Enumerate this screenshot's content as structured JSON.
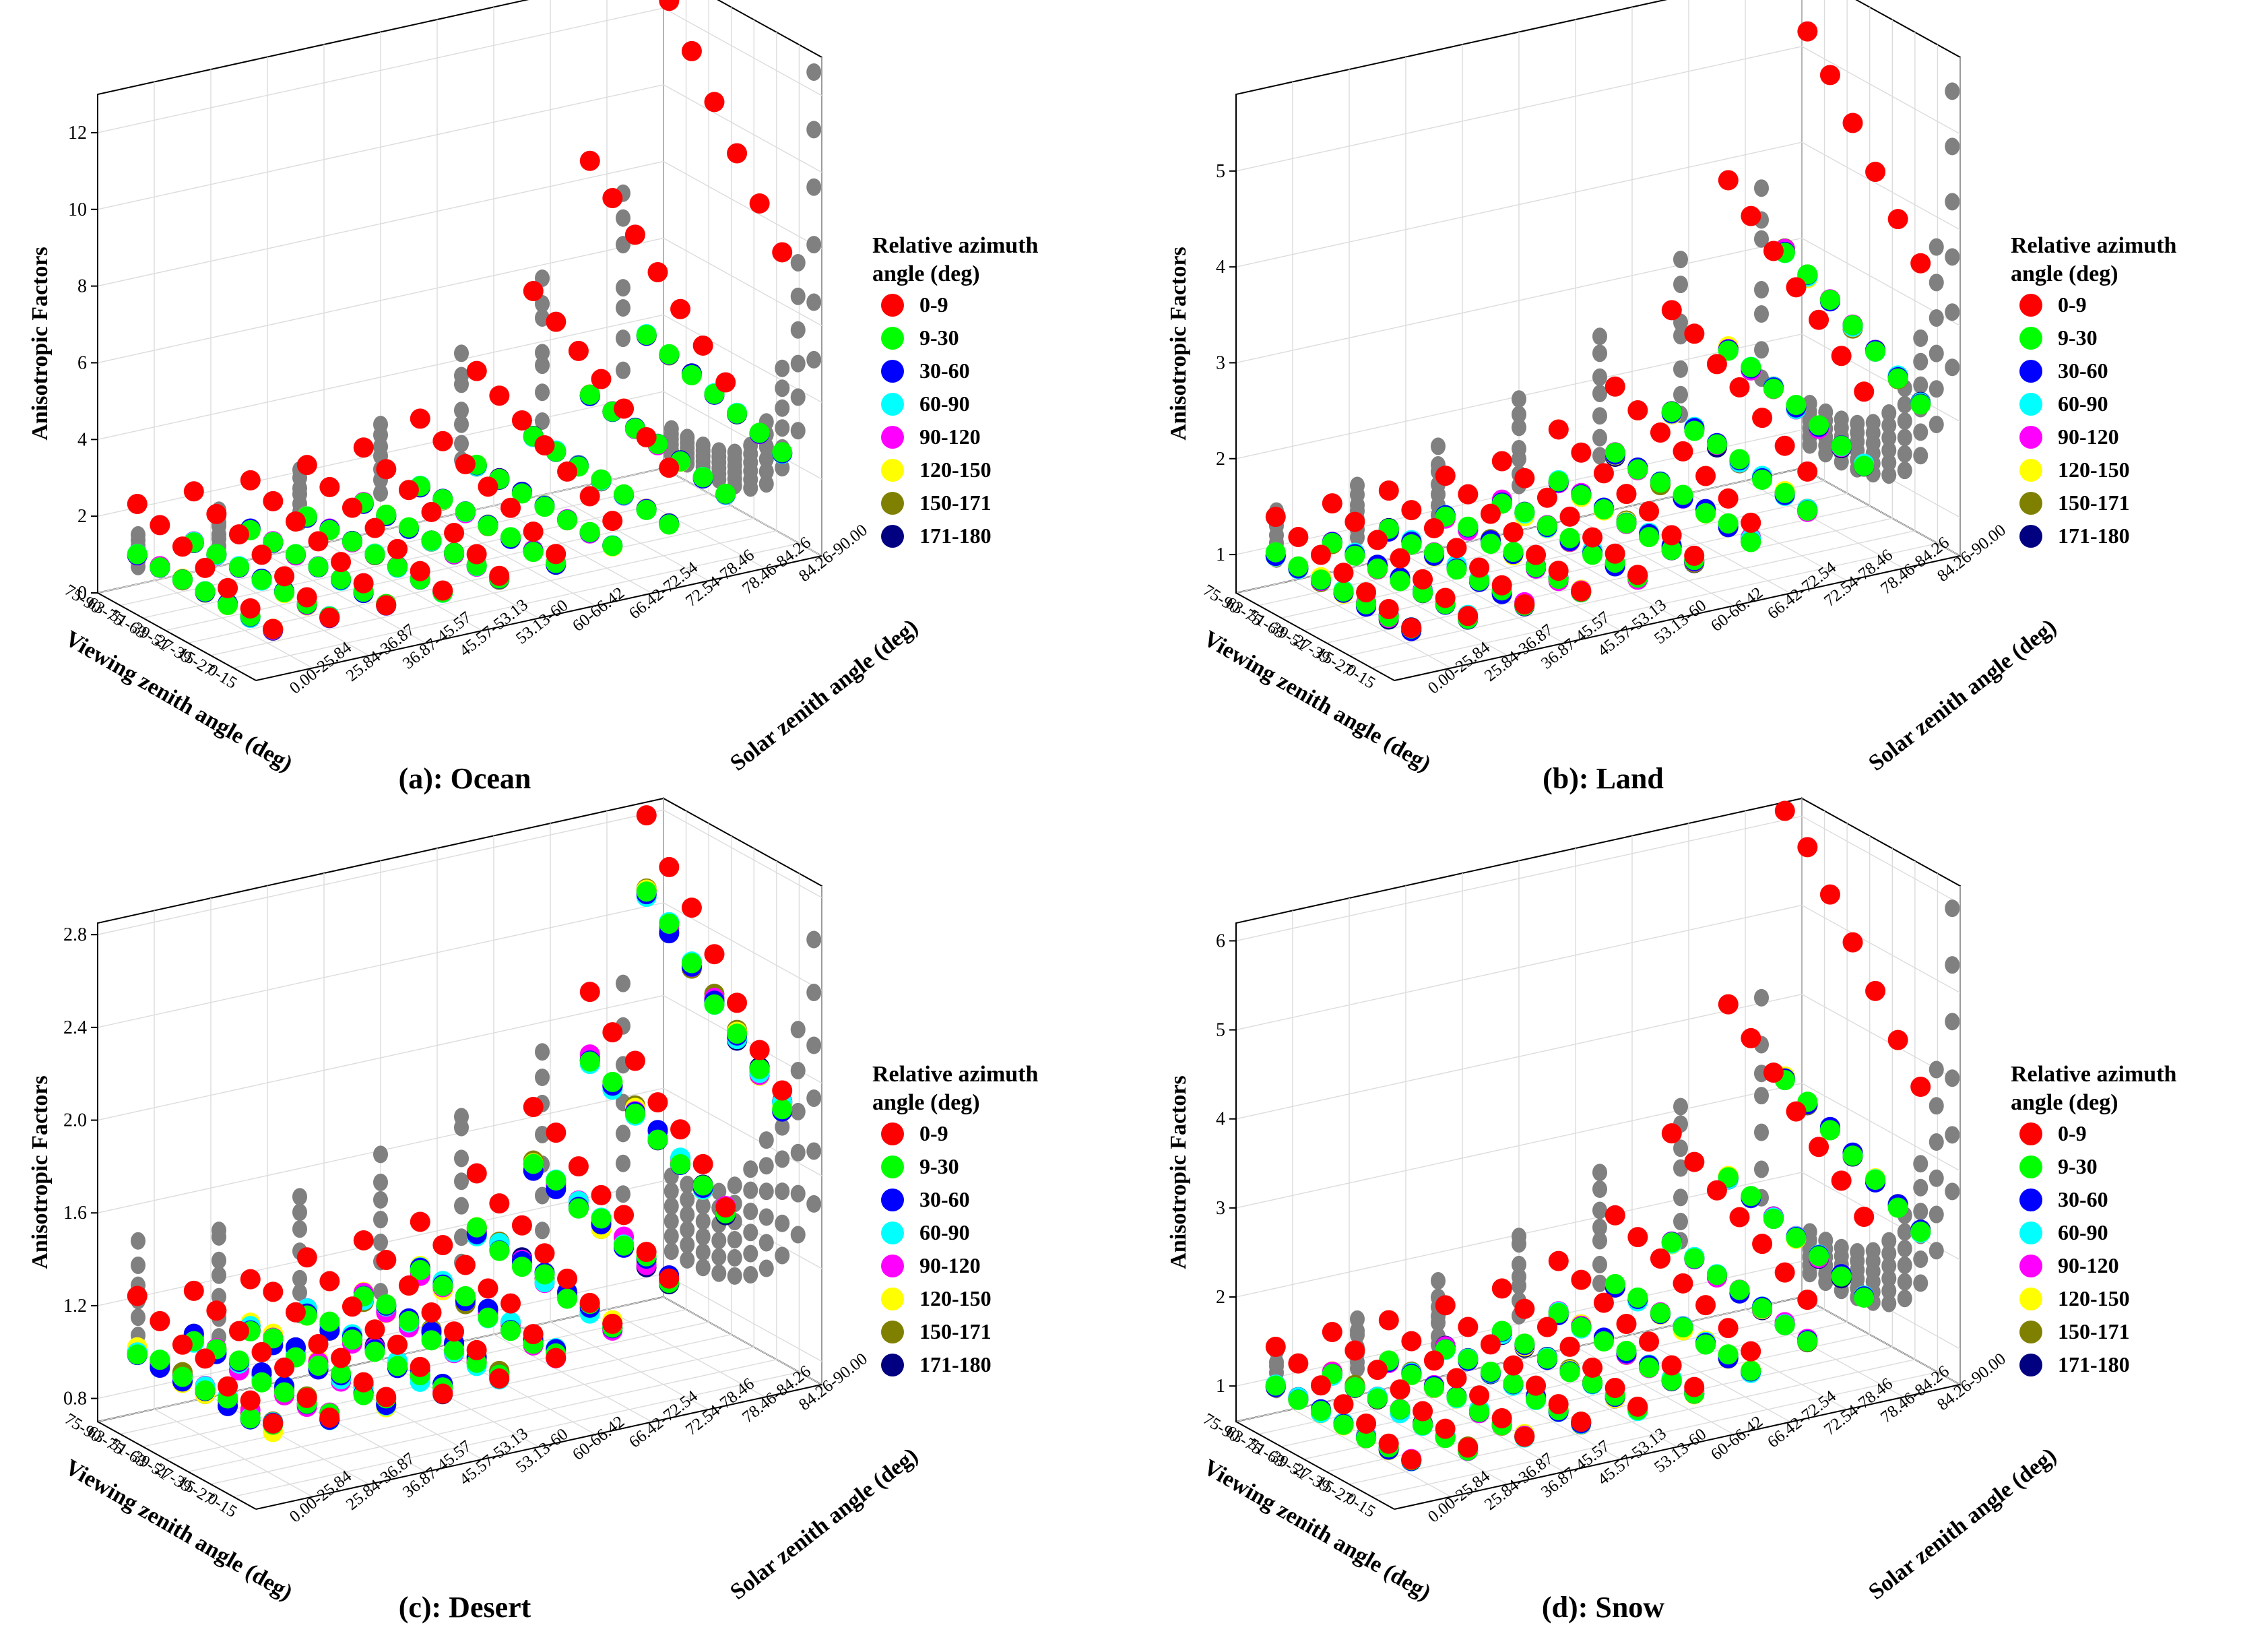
{
  "figure": {
    "legend_title_lines": [
      "Relative azimuth",
      "angle (deg)"
    ],
    "legend_items": [
      {
        "label": "0-9",
        "color": "#ff0000"
      },
      {
        "label": "9-30",
        "color": "#00ff00"
      },
      {
        "label": "30-60",
        "color": "#0000ff"
      },
      {
        "label": "60-90",
        "color": "#00ffff"
      },
      {
        "label": "90-120",
        "color": "#ff00ff"
      },
      {
        "label": "120-150",
        "color": "#ffff00"
      },
      {
        "label": "150-171",
        "color": "#808000"
      },
      {
        "label": "171-180",
        "color": "#000080"
      }
    ],
    "projection_color": "#808080"
  },
  "chart_data": [
    {
      "type": "scatter3d",
      "title": "(a): Ocean",
      "zlabel": "Anisotropic Factors",
      "xlabel": "Viewing zenith angle (deg)",
      "ylabel": "Solar zenith angle (deg)",
      "x_categories": [
        "0-15",
        "15-27",
        "27-39",
        "39-51",
        "51-63",
        "63-75",
        "75-90"
      ],
      "y_categories": [
        "0.00-25.84",
        "25.84-36.87",
        "36.87-45.57",
        "45.57-53.13",
        "53.13-60",
        "60-66.42",
        "66.42-72.54",
        "72.54-78.46",
        "78.46-84.26",
        "84.26-90.00"
      ],
      "z_ticks": [
        "0",
        "2",
        "4",
        "6",
        "8",
        "10",
        "12"
      ],
      "zlim": [
        0,
        13
      ],
      "vza_peak_red": 3.6,
      "vza_peak_other": 1.4,
      "sza_peak_red": 12.5,
      "sza_peak_other": 3.8
    },
    {
      "type": "scatter3d",
      "title": "(b): Land",
      "zlabel": "Anisotropic Factors",
      "xlabel": "Viewing zenith angle (deg)",
      "ylabel": "Solar zenith angle (deg)",
      "x_categories": [
        "0-15",
        "15-27",
        "27-39",
        "39-51",
        "51-63",
        "63-75",
        "75-90"
      ],
      "y_categories": [
        "0.00-25.84",
        "25.84-36.87",
        "36.87-45.57",
        "45.57-53.13",
        "53.13-60",
        "60-66.42",
        "66.42-72.54",
        "72.54-78.46",
        "78.46-84.26",
        "84.26-90.00"
      ],
      "z_ticks": [
        "1",
        "2",
        "3",
        "4",
        "5"
      ],
      "zlim": [
        0.6,
        5.8
      ],
      "vza_peak_red": 1.8,
      "vza_peak_other": 1.4,
      "sza_peak_red": 5.4,
      "sza_peak_other": 3.0
    },
    {
      "type": "scatter3d",
      "title": "(c): Desert",
      "zlabel": "Anisotropic Factors",
      "xlabel": "Viewing zenith angle (deg)",
      "ylabel": "Solar zenith angle (deg)",
      "x_categories": [
        "0-15",
        "15-27",
        "27-39",
        "39-51",
        "51-63",
        "63-75",
        "75-90"
      ],
      "y_categories": [
        "0.00-25.84",
        "25.84-36.87",
        "36.87-45.57",
        "45.57-53.13",
        "53.13-60",
        "60-66.42",
        "66.42-72.54",
        "72.54-78.46",
        "78.46-84.26",
        "84.26-90.00"
      ],
      "z_ticks": [
        "0.8",
        "1.2",
        "1.6",
        "2.0",
        "2.4",
        "2.8"
      ],
      "zlim": [
        0.7,
        2.85
      ],
      "vza_peak_red": 1.45,
      "vza_peak_other": 1.45,
      "sza_peak_red": 2.6,
      "sza_peak_other": 2.5
    },
    {
      "type": "scatter3d",
      "title": "(d): Snow",
      "zlabel": "Anisotropic Factors",
      "xlabel": "Viewing zenith angle (deg)",
      "ylabel": "Solar zenith angle (deg)",
      "x_categories": [
        "0-15",
        "15-27",
        "27-39",
        "39-51",
        "51-63",
        "63-75",
        "75-90"
      ],
      "y_categories": [
        "0.00-25.84",
        "25.84-36.87",
        "36.87-45.57",
        "45.57-53.13",
        "53.13-60",
        "60-66.42",
        "66.42-72.54",
        "72.54-78.46",
        "78.46-84.26",
        "84.26-90.00"
      ],
      "z_ticks": [
        "1",
        "2",
        "3",
        "4",
        "5",
        "6"
      ],
      "zlim": [
        0.6,
        6.2
      ],
      "vza_peak_red": 1.9,
      "vza_peak_other": 1.4,
      "sza_peak_red": 5.9,
      "sza_peak_other": 3.2
    }
  ]
}
